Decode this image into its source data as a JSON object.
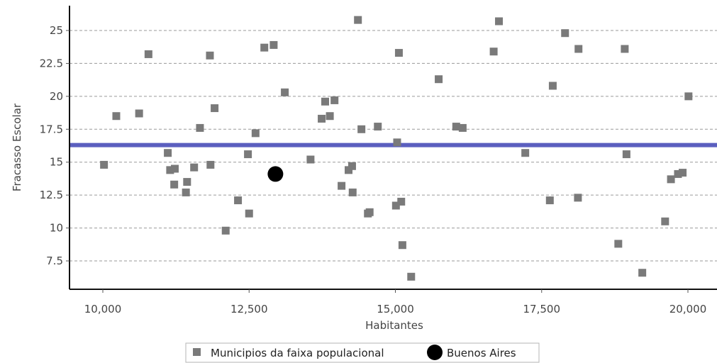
{
  "chart_data": {
    "type": "scatter",
    "xlabel": "Habitantes",
    "ylabel": "Fracasso Escolar",
    "xlim": [
      9700,
      20500
    ],
    "ylim": [
      5.3,
      26.8
    ],
    "x_ticks": [
      10000,
      12500,
      15000,
      17500,
      20000
    ],
    "x_tick_labels": [
      "10,000",
      "12,500",
      "15,000",
      "17,500",
      "20,000"
    ],
    "y_ticks": [
      7.5,
      10,
      12.5,
      15,
      17.5,
      20,
      22.5,
      25
    ],
    "y_tick_labels": [
      "7.5",
      "10",
      "12.5",
      "15",
      "17.5",
      "20",
      "22.5",
      "25"
    ],
    "grid": "horizontal dashed",
    "reference_line": {
      "y": 16.3,
      "color": "#5b5fbf"
    },
    "series": [
      {
        "name": "Municipios da faixa populacional",
        "marker": "square",
        "color": "#7a7a7a",
        "points": [
          [
            10020,
            14.8
          ],
          [
            10230,
            18.5
          ],
          [
            10620,
            18.7
          ],
          [
            10780,
            23.2
          ],
          [
            11110,
            15.7
          ],
          [
            11150,
            14.4
          ],
          [
            11230,
            14.5
          ],
          [
            11220,
            13.3
          ],
          [
            11420,
            12.7
          ],
          [
            11440,
            13.5
          ],
          [
            11560,
            14.6
          ],
          [
            11660,
            17.6
          ],
          [
            11830,
            23.1
          ],
          [
            11840,
            14.8
          ],
          [
            11910,
            19.1
          ],
          [
            12100,
            9.8
          ],
          [
            12310,
            12.1
          ],
          [
            12480,
            15.6
          ],
          [
            12500,
            11.1
          ],
          [
            12610,
            17.2
          ],
          [
            12760,
            23.7
          ],
          [
            12920,
            23.9
          ],
          [
            13110,
            20.3
          ],
          [
            13550,
            15.2
          ],
          [
            13740,
            18.3
          ],
          [
            13800,
            19.6
          ],
          [
            13880,
            18.5
          ],
          [
            13960,
            19.7
          ],
          [
            14080,
            13.2
          ],
          [
            14200,
            14.4
          ],
          [
            14260,
            14.7
          ],
          [
            14270,
            12.7
          ],
          [
            14360,
            25.8
          ],
          [
            14420,
            17.5
          ],
          [
            14530,
            11.1
          ],
          [
            14560,
            11.2
          ],
          [
            14700,
            17.7
          ],
          [
            15010,
            11.7
          ],
          [
            15030,
            16.5
          ],
          [
            15060,
            23.3
          ],
          [
            15100,
            12.0
          ],
          [
            15120,
            8.7
          ],
          [
            15270,
            6.3
          ],
          [
            15740,
            21.3
          ],
          [
            16040,
            17.7
          ],
          [
            16150,
            17.6
          ],
          [
            16680,
            23.4
          ],
          [
            16770,
            25.7
          ],
          [
            17220,
            15.7
          ],
          [
            17640,
            12.1
          ],
          [
            17690,
            20.8
          ],
          [
            17900,
            24.8
          ],
          [
            18120,
            12.3
          ],
          [
            18130,
            23.6
          ],
          [
            18810,
            8.8
          ],
          [
            18920,
            23.6
          ],
          [
            18950,
            15.6
          ],
          [
            19220,
            6.6
          ],
          [
            19610,
            10.5
          ],
          [
            19710,
            13.7
          ],
          [
            19830,
            14.1
          ],
          [
            19910,
            14.2
          ],
          [
            20010,
            20.0
          ]
        ]
      },
      {
        "name": "Buenos Aires",
        "marker": "circle",
        "color": "#000000",
        "points": [
          [
            12950,
            14.1
          ]
        ]
      }
    ]
  }
}
